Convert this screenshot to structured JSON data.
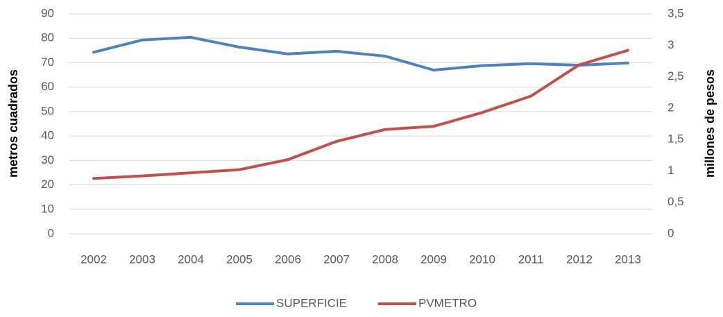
{
  "chart_data": {
    "type": "line",
    "categories": [
      "2002",
      "2003",
      "2004",
      "2005",
      "2006",
      "2007",
      "2008",
      "2009",
      "2010",
      "2011",
      "2012",
      "2013"
    ],
    "series": [
      {
        "name": "SUPERFICIE",
        "color": "#4f81bd",
        "values": [
          74.3,
          79.3,
          80.4,
          76.4,
          73.6,
          74.7,
          72.7,
          67,
          68.8,
          69.6,
          69,
          69.9
        ]
      },
      {
        "name": "PVMETRO",
        "color": "#c0504d",
        "axis": "y2",
        "values": [
          0.88,
          0.92,
          0.97,
          1.02,
          1.18,
          1.47,
          1.66,
          1.71,
          1.93,
          2.19,
          2.69,
          2.92
        ]
      }
    ],
    "y_label": "metros cuadrados",
    "y2_label": "millones de pesos",
    "ylim": [
      0,
      90
    ],
    "yticks": [
      0,
      10,
      20,
      30,
      40,
      50,
      60,
      70,
      80,
      90
    ],
    "y2lim": [
      0,
      3.5
    ],
    "y2ticks": [
      0,
      {
        "value": 0.5,
        "label": "0,5"
      },
      1,
      {
        "value": 1.5,
        "label": "1,5"
      },
      2,
      {
        "value": 2.5,
        "label": "2,5"
      },
      3,
      {
        "value": 3.5,
        "label": "3,5"
      }
    ],
    "grid": true,
    "legend": "bottom"
  }
}
